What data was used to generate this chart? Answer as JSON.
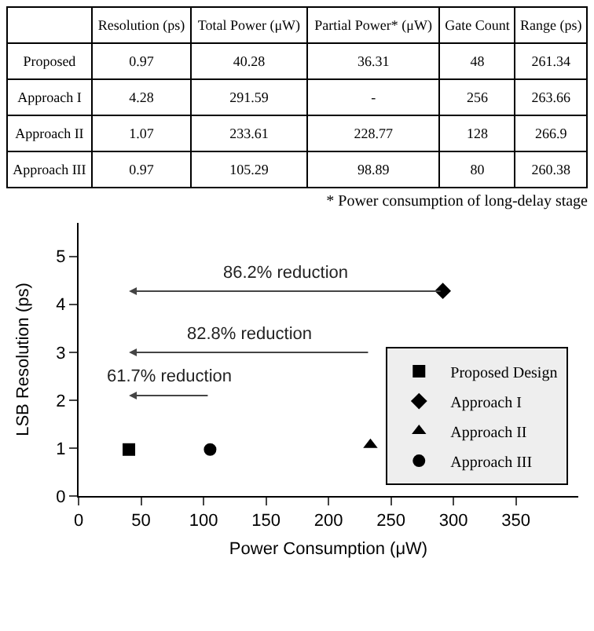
{
  "chart_data": [
    {
      "type": "other",
      "categories": [
        "Resolution (ps)",
        "Total Power (μW)",
        "Partial Power* (μW)",
        "Gate Count",
        "Range (ps)"
      ],
      "y_categories": [
        "Proposed",
        "Approach I",
        "Approach II",
        "Approach III"
      ],
      "cell_labels": [
        [
          "0.97",
          "40.28",
          "36.31",
          "48",
          "261.34"
        ],
        [
          "4.28",
          "291.59",
          "-",
          "256",
          "263.66"
        ],
        [
          "1.07",
          "233.61",
          "228.77",
          "128",
          "266.9"
        ],
        [
          "0.97",
          "105.29",
          "98.89",
          "80",
          "260.38"
        ]
      ],
      "annotations": [
        "* Power consumption of long-delay stage"
      ]
    },
    {
      "type": "scatter",
      "xlabel": "Power Consumption (μW)",
      "ylabel": "LSB Resolution (ps)",
      "xlim": [
        0,
        400
      ],
      "xticks": [
        0,
        50,
        100,
        150,
        200,
        250,
        300,
        350
      ],
      "ylim": [
        0,
        5.7
      ],
      "yticks": [
        0,
        1,
        2,
        3,
        4,
        5
      ],
      "grid": false,
      "legend": "bottom right",
      "series": [
        {
          "name": "Proposed Design",
          "color": "#000000",
          "marker": "square",
          "x": [
            40.28
          ],
          "values": [
            0.97
          ]
        },
        {
          "name": "Approach I",
          "color": "#000000",
          "marker": "diamond",
          "x": [
            291.59
          ],
          "values": [
            4.28
          ]
        },
        {
          "name": "Approach II",
          "color": "#000000",
          "marker": "triangle",
          "x": [
            233.61
          ],
          "values": [
            1.07
          ]
        },
        {
          "name": "Approach III",
          "color": "#000000",
          "marker": "circle",
          "x": [
            105.29
          ],
          "values": [
            0.97
          ]
        }
      ],
      "annotations": [
        "86.2% reduction",
        "82.8% reduction",
        "61.7% reduction"
      ]
    }
  ]
}
